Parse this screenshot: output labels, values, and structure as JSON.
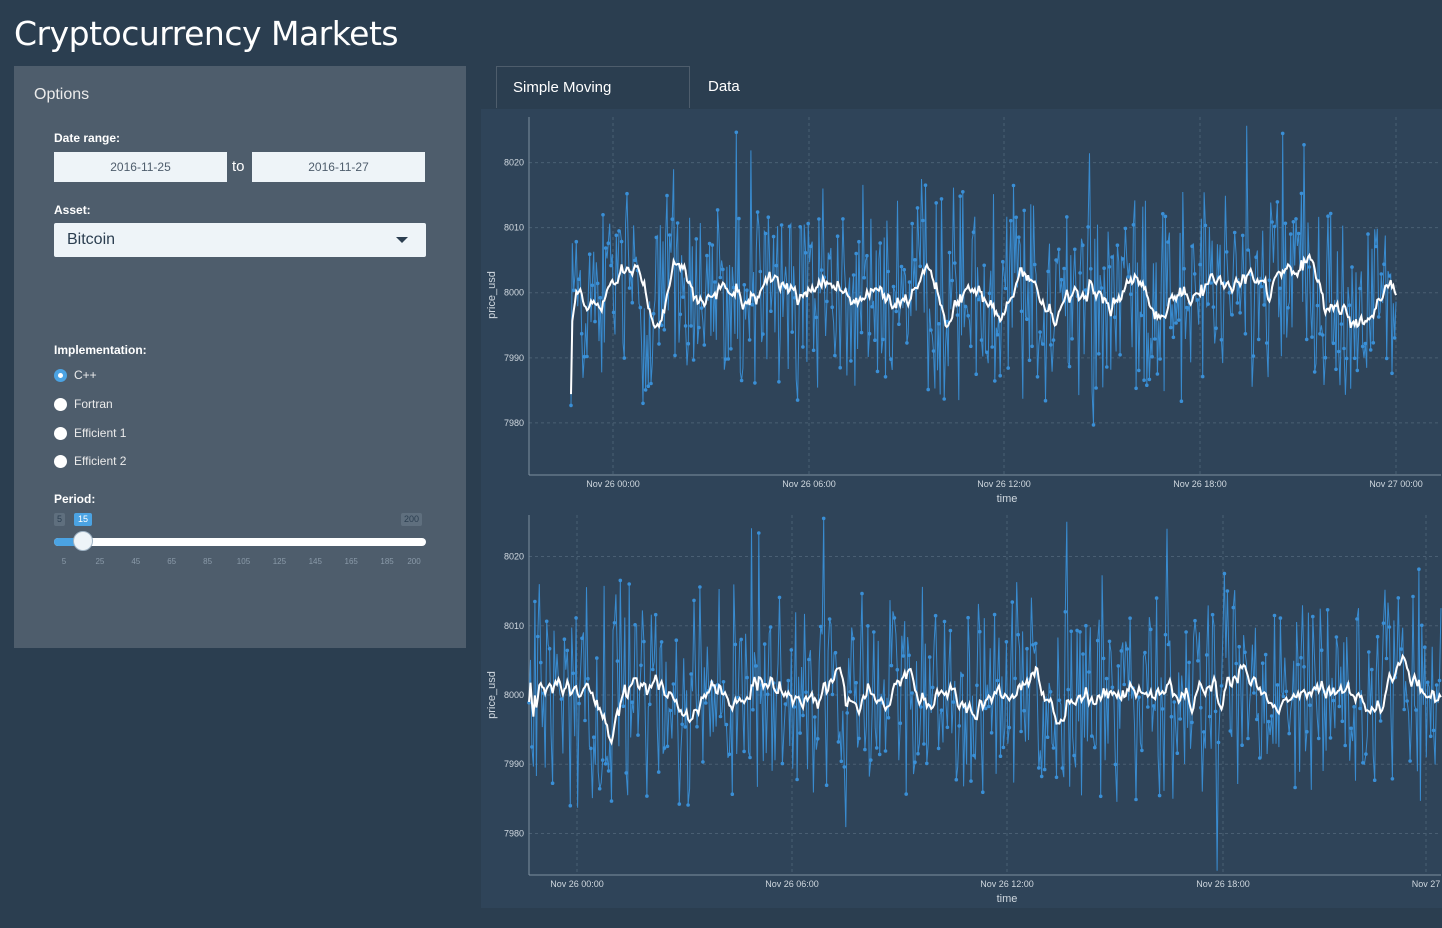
{
  "app": {
    "title": "Cryptocurrency Markets"
  },
  "sidebar": {
    "title": "Options",
    "date_range": {
      "label": "Date range:",
      "start": "2016-11-25",
      "separator": "to",
      "end": "2016-11-27"
    },
    "asset": {
      "label": "Asset:",
      "selected": "Bitcoin"
    },
    "implementation": {
      "label": "Implementation:",
      "options": [
        {
          "label": "C++",
          "checked": true
        },
        {
          "label": "Fortran",
          "checked": false
        },
        {
          "label": "Efficient 1",
          "checked": false
        },
        {
          "label": "Efficient 2",
          "checked": false
        }
      ]
    },
    "period": {
      "label": "Period:",
      "min": 5,
      "max": 200,
      "value": 15,
      "min_label": "5",
      "max_label": "200",
      "value_label": "15",
      "ticks": [
        "5",
        "25",
        "45",
        "65",
        "85",
        "105",
        "125",
        "145",
        "165",
        "185",
        "200"
      ]
    }
  },
  "tabs": [
    {
      "label": "Simple Moving Averages",
      "active": true
    },
    {
      "label": "Data Overview",
      "active": false
    }
  ],
  "colors": {
    "background": "#2b3e50",
    "panel": "#4e5d6c",
    "price_series": "#3a8fd6",
    "sma_series": "#ffffff",
    "accent": "#4ba3e3"
  },
  "chart_data": [
    {
      "type": "line",
      "xlabel": "time",
      "ylabel": "price_usd",
      "x_ticks": [
        "Nov 26 00:00",
        "Nov 26 06:00",
        "Nov 26 12:00",
        "Nov 26 18:00",
        "Nov 27 00:00"
      ],
      "y_ticks": [
        7980,
        7990,
        8000,
        8010,
        8020
      ],
      "xlim": [
        "Nov 25 21:15",
        "Nov 27 00:45"
      ],
      "ylim": [
        7972,
        8027
      ],
      "grid": true,
      "series": [
        {
          "color": "#3a8fd6",
          "values_summary": {
            "center": 8000,
            "min": 7974,
            "max": 8026
          }
        },
        {
          "color": "#ffffff",
          "values_summary": {
            "center": 8000,
            "min": 7995,
            "max": 8007
          }
        }
      ]
    },
    {
      "type": "line",
      "xlabel": "time",
      "ylabel": "price_usd",
      "x_ticks": [
        "Nov 26 00:00",
        "Nov 26 06:00",
        "Nov 26 12:00",
        "Nov 26 18:00",
        "Nov 27"
      ],
      "y_ticks": [
        7980,
        7990,
        8000,
        8010,
        8020
      ],
      "xlim": [
        "Nov 25 22:40",
        "Nov 27 00:30"
      ],
      "ylim": [
        7974,
        8026
      ],
      "grid": true,
      "series": [
        {
          "color": "#3a8fd6",
          "values_summary": {
            "center": 8000,
            "min": 7974,
            "max": 8026
          }
        },
        {
          "color": "#ffffff",
          "values_summary": {
            "center": 8000,
            "min": 7995,
            "max": 8007
          }
        }
      ]
    }
  ]
}
